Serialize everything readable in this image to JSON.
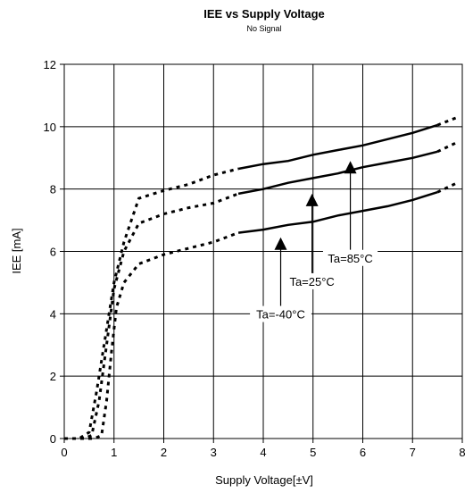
{
  "chart_data": {
    "type": "line",
    "title": "IEE vs Supply Voltage",
    "subtitle": "No Signal",
    "xlabel": "Supply Voltage[±V]",
    "ylabel": "IEE [mA]",
    "xlim": [
      0,
      8
    ],
    "ylim": [
      0,
      12
    ],
    "xticks": [
      "0",
      "1",
      "2",
      "3",
      "4",
      "5",
      "6",
      "7",
      "8"
    ],
    "yticks": [
      "0",
      "2",
      "4",
      "6",
      "8",
      "10",
      "12"
    ],
    "grid": true,
    "series": [
      {
        "name": "Ta=-40°C",
        "dashed": [
          [
            0,
            0
          ],
          [
            0.4,
            0
          ],
          [
            0.6,
            0
          ],
          [
            0.75,
            0.1
          ],
          [
            0.85,
            1.2
          ],
          [
            0.95,
            2.8
          ],
          [
            1.05,
            4.2
          ],
          [
            1.2,
            5
          ],
          [
            1.5,
            5.6
          ],
          [
            2,
            5.9
          ],
          [
            2.5,
            6.1
          ],
          [
            3,
            6.3
          ],
          [
            3.5,
            6.6
          ]
        ],
        "solid": [
          [
            3.5,
            6.6
          ],
          [
            4,
            6.7
          ],
          [
            4.5,
            6.85
          ],
          [
            5,
            6.95
          ],
          [
            5.5,
            7.15
          ],
          [
            6,
            7.3
          ],
          [
            6.5,
            7.45
          ],
          [
            7,
            7.65
          ],
          [
            7.5,
            7.9
          ]
        ],
        "dashed_tail": [
          [
            7.5,
            7.9
          ],
          [
            7.9,
            8.2
          ]
        ]
      },
      {
        "name": "Ta=25°C",
        "dashed": [
          [
            0,
            0
          ],
          [
            0.4,
            0
          ],
          [
            0.55,
            0.1
          ],
          [
            0.7,
            1.2
          ],
          [
            0.85,
            3
          ],
          [
            1,
            4.8
          ],
          [
            1.2,
            6
          ],
          [
            1.5,
            6.9
          ],
          [
            2,
            7.2
          ],
          [
            2.5,
            7.4
          ],
          [
            3,
            7.55
          ],
          [
            3.5,
            7.85
          ]
        ],
        "solid": [
          [
            3.5,
            7.85
          ],
          [
            4,
            8
          ],
          [
            4.5,
            8.2
          ],
          [
            5,
            8.35
          ],
          [
            5.5,
            8.5
          ],
          [
            6,
            8.7
          ],
          [
            6.5,
            8.85
          ],
          [
            7,
            9
          ],
          [
            7.5,
            9.2
          ]
        ],
        "dashed_tail": [
          [
            7.5,
            9.2
          ],
          [
            7.9,
            9.5
          ]
        ]
      },
      {
        "name": "Ta=85°C",
        "dashed": [
          [
            0,
            0
          ],
          [
            0.3,
            0
          ],
          [
            0.5,
            0.2
          ],
          [
            0.65,
            1.5
          ],
          [
            0.8,
            3
          ],
          [
            1,
            5
          ],
          [
            1.2,
            6.3
          ],
          [
            1.5,
            7.7
          ],
          [
            2,
            7.95
          ],
          [
            2.5,
            8.15
          ],
          [
            3,
            8.45
          ],
          [
            3.5,
            8.65
          ]
        ],
        "solid": [
          [
            3.5,
            8.65
          ],
          [
            4,
            8.8
          ],
          [
            4.5,
            8.9
          ],
          [
            5,
            9.1
          ],
          [
            5.5,
            9.25
          ],
          [
            6,
            9.4
          ],
          [
            6.5,
            9.6
          ],
          [
            7,
            9.8
          ],
          [
            7.5,
            10.05
          ]
        ],
        "dashed_tail": [
          [
            7.5,
            10.05
          ],
          [
            7.9,
            10.3
          ]
        ]
      }
    ],
    "annotations": [
      {
        "text": "Ta=-40°C",
        "arrow_base": [
          4.35,
          4.25
        ],
        "arrow_tip": [
          4.35,
          6.45
        ]
      },
      {
        "text": "Ta=25°C",
        "arrow_base": [
          4.98,
          5.3
        ],
        "arrow_tip": [
          4.98,
          7.85
        ]
      },
      {
        "text": "Ta=85°C",
        "arrow_base": [
          5.75,
          6.05
        ],
        "arrow_tip": [
          5.75,
          8.9
        ]
      }
    ]
  }
}
